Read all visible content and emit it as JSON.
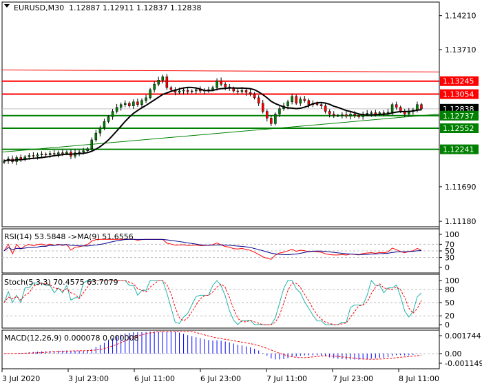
{
  "header": {
    "symbol": "EURUSD,M30",
    "ohlc": "1.12887 1.12911 1.12837 1.12838",
    "menu_icon": "triangle-down-icon"
  },
  "colors": {
    "bull": "#008000",
    "bear": "#ff0000",
    "resistance": "#ff0000",
    "support": "#008000",
    "current": "#000000",
    "ma": "#000000",
    "rsi": "#ff0000",
    "rsi_ma": "#00008b",
    "stoch_main": "#20b2aa",
    "stoch_signal": "#ff0000",
    "macd_hist": "#0000ff",
    "macd_signal": "#ff0000"
  },
  "price_axis": {
    "ticks": [
      "1.14210",
      "1.13710",
      "1.11690",
      "1.11180"
    ],
    "levels": [
      {
        "label": "1.13245",
        "type": "resistance"
      },
      {
        "label": "1.13054",
        "type": "resistance"
      },
      {
        "label": "1.12838",
        "type": "current"
      },
      {
        "label": "1.12737",
        "type": "support"
      },
      {
        "label": "1.12552",
        "type": "support"
      },
      {
        "label": "1.12241",
        "type": "support"
      }
    ]
  },
  "chart_data": {
    "type": "candlestick",
    "closes": [
      1.1207,
      1.121,
      1.1206,
      1.1212,
      1.1209,
      1.1213,
      1.1215,
      1.1214,
      1.1216,
      1.1217,
      1.1216,
      1.1218,
      1.1217,
      1.1219,
      1.1218,
      1.122,
      1.1214,
      1.1219,
      1.122,
      1.1222,
      1.1225,
      1.1238,
      1.1248,
      1.1256,
      1.1265,
      1.1272,
      1.128,
      1.1286,
      1.129,
      1.1292,
      1.1288,
      1.1294,
      1.129,
      1.1296,
      1.13,
      1.1312,
      1.132,
      1.1326,
      1.1331,
      1.1315,
      1.1312,
      1.1308,
      1.131,
      1.1311,
      1.1309,
      1.131,
      1.1312,
      1.131,
      1.1311,
      1.1312,
      1.1315,
      1.1325,
      1.132,
      1.1316,
      1.1314,
      1.131,
      1.1309,
      1.1311,
      1.1308,
      1.1306,
      1.13,
      1.1292,
      1.128,
      1.127,
      1.1262,
      1.1276,
      1.1284,
      1.1288,
      1.1294,
      1.1302,
      1.1292,
      1.1298,
      1.1296,
      1.129,
      1.1292,
      1.129,
      1.1288,
      1.128,
      1.1276,
      1.1274,
      1.1274,
      1.1275,
      1.1273,
      1.1276,
      1.1274,
      1.1272,
      1.1276,
      1.1277,
      1.1278,
      1.1276,
      1.1278,
      1.1277,
      1.1279,
      1.129,
      1.1286,
      1.128,
      1.1276,
      1.128,
      1.1282,
      1.129,
      1.12838
    ],
    "ylim": [
      1.111,
      1.1441
    ],
    "horizontal_lines": [
      1.13245,
      1.13054,
      1.12737,
      1.12552,
      1.12241
    ],
    "top_line": [
      1.1341,
      1.1338
    ],
    "trendline": [
      1.122,
      1.1276
    ],
    "x_tick_labels": [
      "3 Jul 2020",
      "3 Jul 23:00",
      "6 Jul 11:00",
      "6 Jul 23:00",
      "7 Jul 11:00",
      "7 Jul 23:00",
      "8 Jul 11:00"
    ]
  },
  "indicators": {
    "rsi": {
      "label": "RSI(14) 53.5848  ->MA(9) 51.6556",
      "ticks": [
        "100",
        "70",
        "50",
        "30",
        "0"
      ]
    },
    "stoch": {
      "label": "Stoch(5,3,3) 70.4575 63.7079",
      "ticks": [
        "100",
        "80",
        "50",
        "20",
        "0"
      ]
    },
    "macd": {
      "label": "MACD(12,26,9) 0.000078 0.000008",
      "ticks": [
        "0.001744",
        "0.00",
        "-0.001149"
      ]
    }
  }
}
